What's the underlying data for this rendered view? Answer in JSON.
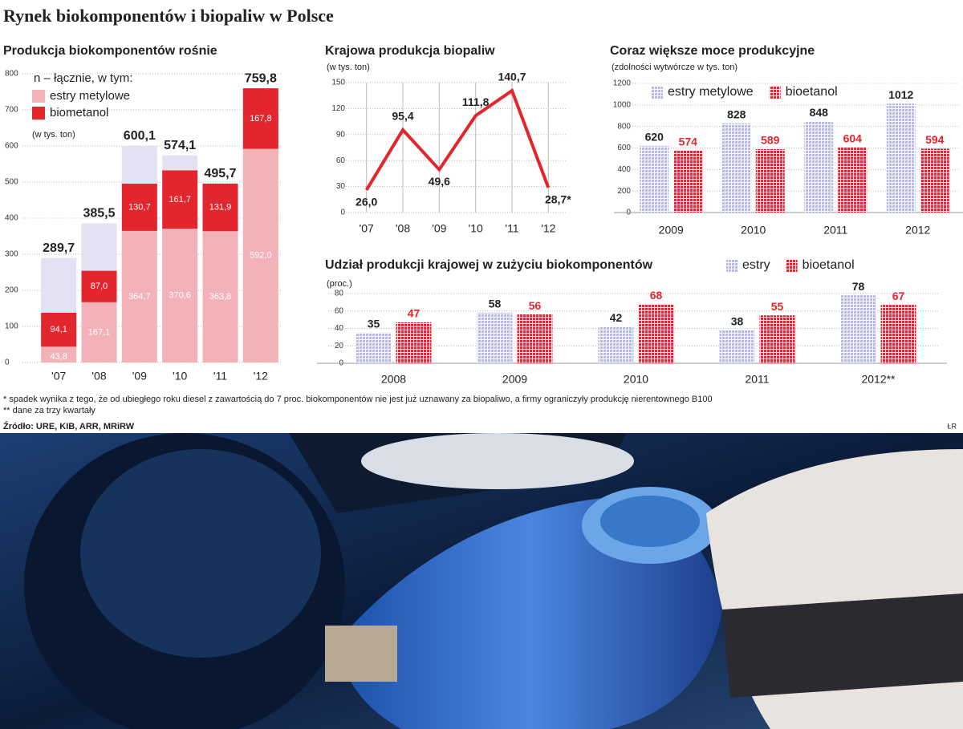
{
  "header": {
    "title": "Rynek biokomponentów i biopaliw w Polsce"
  },
  "chart_data": [
    {
      "type": "stacked_bar",
      "title": "Produkcja biokomponentów rośnie",
      "unit": "(w tys. ton)",
      "categories": [
        "'07",
        "'08",
        "'09",
        "'10",
        "'11",
        "'12"
      ],
      "totals": {
        "name": "n – łącznie, w tym:",
        "color": "#e2e2f3",
        "values": [
          289.7,
          385.5,
          600.1,
          574.1,
          495.7,
          759.8
        ],
        "value_labels": [
          "289,7",
          "385,5",
          "600,1",
          "574,1",
          "495,7",
          "759,8"
        ]
      },
      "series": [
        {
          "name": "estry metylowe",
          "color": "#f3b2b7",
          "values": [
            43.8,
            167.1,
            364.7,
            370.6,
            363.8,
            592.0
          ],
          "value_labels": [
            "43,8",
            "167,1",
            "364,7",
            "370,6",
            "363,8",
            "592,0"
          ]
        },
        {
          "name": "biometanol",
          "color": "#e3262d",
          "values": [
            94.1,
            87.0,
            130.7,
            161.7,
            131.9,
            167.8
          ],
          "value_labels": [
            "94,1",
            "87,0",
            "130,7",
            "161,7",
            "131,9",
            "167,8"
          ]
        }
      ],
      "ylim": [
        0,
        800
      ],
      "yticks": [
        0,
        100,
        200,
        300,
        400,
        500,
        600,
        700,
        800
      ],
      "grid": true
    },
    {
      "type": "line",
      "title": "Krajowa produkcja biopaliw",
      "unit": "(w tys. ton)",
      "categories": [
        "'07",
        "'08",
        "'09",
        "'10",
        "'11",
        "'12"
      ],
      "values": [
        26.0,
        95.4,
        49.6,
        111.8,
        140.7,
        28.7
      ],
      "value_labels": [
        "26,0",
        "95,4",
        "49,6",
        "111,8",
        "140,7",
        "28,7*"
      ],
      "color": "#e3262d",
      "ylim": [
        0,
        150
      ],
      "yticks": [
        0,
        30,
        60,
        90,
        120,
        150
      ],
      "grid": true
    },
    {
      "type": "grouped_bar",
      "title": "Coraz większe moce produkcyjne",
      "unit": "(zdolności wytwórcze w tys. ton)",
      "categories": [
        "2009",
        "2010",
        "2011",
        "2012"
      ],
      "series": [
        {
          "name": "estry metylowe",
          "color": "#b9b9e6",
          "values": [
            620,
            828,
            848,
            1012
          ]
        },
        {
          "name": "bioetanol",
          "color": "#e3262d",
          "values": [
            574,
            589,
            604,
            594
          ]
        }
      ],
      "ylim": [
        0,
        1200
      ],
      "yticks": [
        0,
        200,
        400,
        600,
        800,
        1000,
        1200
      ],
      "grid": true
    },
    {
      "type": "grouped_bar",
      "title": "Udział produkcji krajowej w zużyciu biokomponentów",
      "unit": "(proc.)",
      "categories": [
        "2008",
        "2009",
        "2010",
        "2011",
        "2012**"
      ],
      "series": [
        {
          "name": "estry",
          "color": "#b9b9e6",
          "values": [
            35,
            58,
            42,
            38,
            78
          ]
        },
        {
          "name": "bioetanol",
          "color": "#e3262d",
          "values": [
            47,
            56,
            68,
            55,
            67
          ]
        }
      ],
      "ylim": [
        0,
        80
      ],
      "yticks": [
        0,
        20,
        40,
        60,
        80
      ],
      "grid": true
    }
  ],
  "notes": [
    "* spadek wynika z tego, że od ubiegłego roku diesel z zawartością do 7 proc. biokomponentów nie jest już uznawany za biopaliwo, a firmy ograniczyły produkcję nierentownego B100",
    "** dane za trzy kwartały"
  ],
  "source": "Źródło: URE, KIB, ARR, MRiRW",
  "credit": "ŁR"
}
